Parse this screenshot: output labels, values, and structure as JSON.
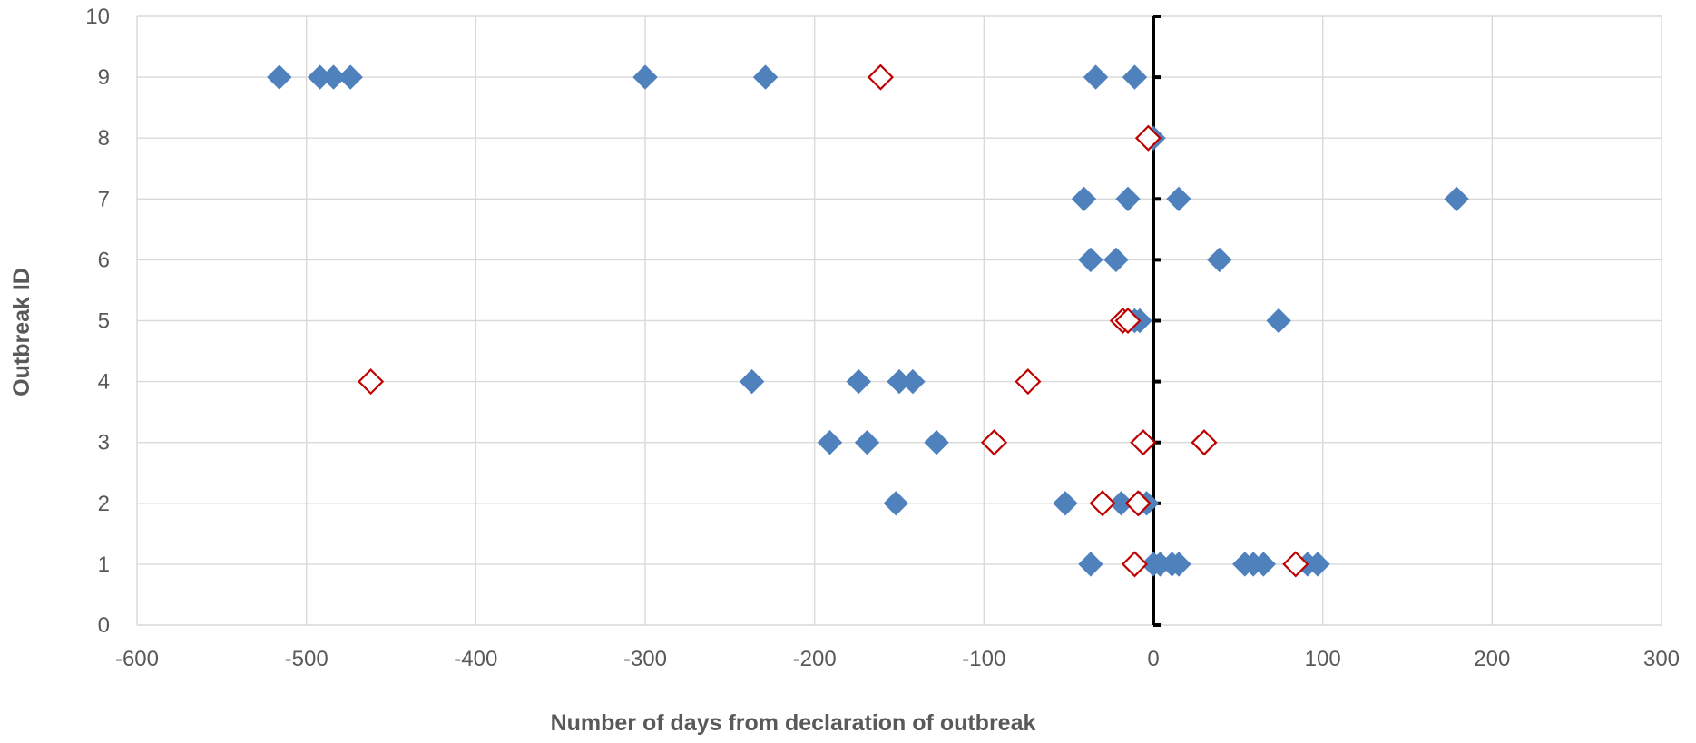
{
  "chart_data": {
    "type": "scatter",
    "title": "",
    "xlabel": "Number of days from declaration of outbreak",
    "ylabel": "Outbreak ID",
    "xlim": [
      -600,
      300
    ],
    "ylim": [
      0,
      10
    ],
    "x_ticks": [
      -600,
      -500,
      -400,
      -300,
      -200,
      -100,
      0,
      100,
      200,
      300
    ],
    "y_ticks": [
      0,
      1,
      2,
      3,
      4,
      5,
      6,
      7,
      8,
      9,
      10
    ],
    "x_tick_labels": [
      "-600",
      "-500",
      "-400",
      "-300",
      "-200",
      "-100",
      "0",
      "100",
      "200",
      "300"
    ],
    "y_tick_labels": [
      "0",
      "1",
      "2",
      "3",
      "4",
      "5",
      "6",
      "7",
      "8",
      "9",
      "10"
    ],
    "grid": "both",
    "reference_line": {
      "x": 0,
      "color": "#000000",
      "tick_marks": true
    },
    "legend": "none",
    "series": [
      {
        "marker": "filled-diamond",
        "color": "#4f81bd",
        "points": [
          [
            -516,
            9
          ],
          [
            -492,
            9
          ],
          [
            -484,
            9
          ],
          [
            -474,
            9
          ],
          [
            -300,
            9
          ],
          [
            -229,
            9
          ],
          [
            -34,
            9
          ],
          [
            -11,
            9
          ],
          [
            0,
            8
          ],
          [
            -41,
            7
          ],
          [
            -15,
            7
          ],
          [
            15,
            7
          ],
          [
            179,
            7
          ],
          [
            -37,
            6
          ],
          [
            -22,
            6
          ],
          [
            39,
            6
          ],
          [
            -11,
            5
          ],
          [
            -8,
            5
          ],
          [
            74,
            5
          ],
          [
            -237,
            4
          ],
          [
            -174,
            4
          ],
          [
            -150,
            4
          ],
          [
            -142,
            4
          ],
          [
            -191,
            3
          ],
          [
            -169,
            3
          ],
          [
            -128,
            3
          ],
          [
            -152,
            2
          ],
          [
            -52,
            2
          ],
          [
            -19,
            2
          ],
          [
            -8,
            2
          ],
          [
            -4,
            2
          ],
          [
            -37,
            1
          ],
          [
            0,
            1
          ],
          [
            4,
            1
          ],
          [
            11,
            1
          ],
          [
            15,
            1
          ],
          [
            54,
            1
          ],
          [
            59,
            1
          ],
          [
            65,
            1
          ],
          [
            91,
            1
          ],
          [
            97,
            1
          ]
        ]
      },
      {
        "marker": "open-diamond",
        "color": "#c00000",
        "points": [
          [
            -161,
            9
          ],
          [
            -3,
            8
          ],
          [
            -18,
            5
          ],
          [
            -15,
            5
          ],
          [
            -462,
            4
          ],
          [
            -74,
            4
          ],
          [
            -94,
            3
          ],
          [
            -6,
            3
          ],
          [
            30,
            3
          ],
          [
            -30,
            2
          ],
          [
            -9,
            2
          ],
          [
            -11,
            1
          ],
          [
            84,
            1
          ]
        ]
      }
    ]
  }
}
